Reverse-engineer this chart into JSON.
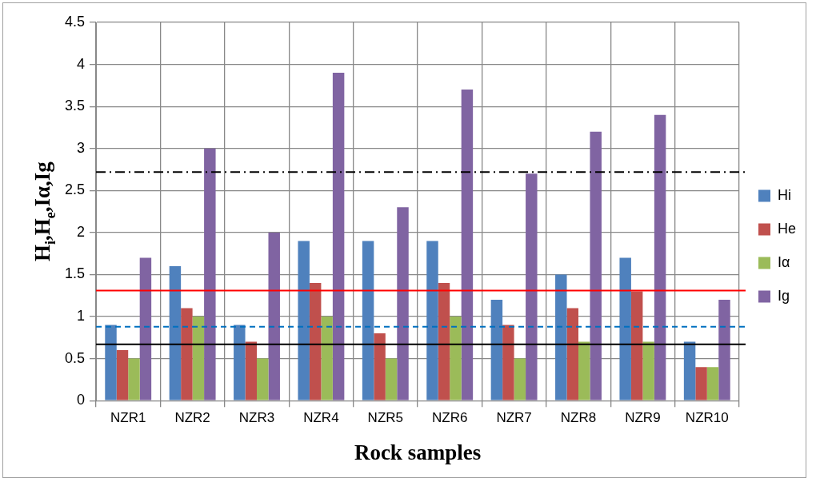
{
  "chart_data": {
    "type": "bar",
    "xlabel": "Rock samples",
    "ylabel": "H$_{i}$,H$_{e}$,Iα,Ig",
    "categories": [
      "NZR1",
      "NZR2",
      "NZR3",
      "NZR4",
      "NZR5",
      "NZR6",
      "NZR7",
      "NZR8",
      "NZR9",
      "NZR10"
    ],
    "series": [
      {
        "name": "Hi",
        "color": "#4f81bd",
        "values": [
          0.9,
          1.6,
          0.9,
          1.9,
          1.9,
          1.9,
          1.2,
          1.5,
          1.7,
          0.7
        ]
      },
      {
        "name": "He",
        "color": "#c0504d",
        "values": [
          0.6,
          1.1,
          0.7,
          1.4,
          0.8,
          1.4,
          0.9,
          1.1,
          1.3,
          0.4
        ]
      },
      {
        "name": "Iα",
        "color": "#9bbb59",
        "values": [
          0.5,
          1.0,
          0.5,
          1.0,
          0.5,
          1.0,
          0.5,
          0.7,
          0.7,
          0.4
        ]
      },
      {
        "name": "Ig",
        "color": "#8064a2",
        "values": [
          1.7,
          3.0,
          2.0,
          3.9,
          2.3,
          3.7,
          2.7,
          3.2,
          3.4,
          1.2
        ]
      }
    ],
    "ylim": [
      0,
      4.5
    ],
    "yticks": [
      0,
      0.5,
      1,
      1.5,
      2,
      2.5,
      3,
      3.5,
      4,
      4.5
    ],
    "ref_lines": [
      {
        "axis": "y",
        "value": 2.72,
        "color": "#000000",
        "line_style": "dashdot"
      },
      {
        "axis": "y",
        "value": 1.31,
        "color": "#ff0000",
        "line_style": "solid"
      },
      {
        "axis": "y",
        "value": 0.88,
        "color": "#0070c0",
        "line_style": "dashed"
      },
      {
        "axis": "y",
        "value": 0.67,
        "color": "#000000",
        "line_style": "solid"
      }
    ],
    "grid": true,
    "legend": "right"
  }
}
